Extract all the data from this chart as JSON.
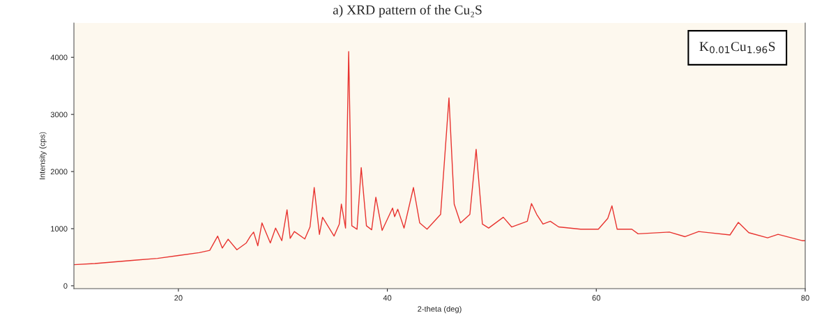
{
  "chart_data": {
    "type": "line",
    "title": "a) XRD pattern of the Cu₂S",
    "xlabel": "2-theta (deg)",
    "ylabel": "Intensity (cps)",
    "annotations": [
      "K$_{0.01}$Cu$_{1.96}$S"
    ],
    "x": [
      10,
      12,
      14,
      16,
      18,
      20,
      22,
      23,
      23.76,
      24.2,
      24.76,
      25.6,
      26.5,
      26.9,
      27.2,
      27.6,
      28.0,
      28.8,
      29.3,
      29.9,
      30.4,
      30.7,
      31.1,
      32.1,
      32.6,
      33.0,
      33.5,
      33.8,
      34.9,
      35.4,
      35.6,
      36.0,
      36.3,
      36.6,
      37.1,
      37.5,
      38.0,
      38.5,
      38.9,
      39.5,
      40.5,
      40.7,
      41.0,
      41.6,
      42.5,
      43.1,
      43.8,
      45.1,
      45.9,
      46.4,
      47.0,
      47.9,
      48.5,
      49.1,
      49.7,
      51.1,
      51.9,
      53.4,
      53.8,
      54.3,
      54.9,
      55.6,
      56.4,
      58.5,
      60.2,
      61.1,
      61.5,
      62.0,
      63.4,
      64.0,
      67.0,
      68.5,
      69.8,
      72.8,
      73.6,
      74.6,
      76.4,
      77.4,
      79.7,
      80
    ],
    "series": [
      {
        "color": "#e8332f",
        "values": [
          370,
          390,
          420,
          450,
          480,
          530,
          580,
          620,
          870,
          660,
          816,
          630,
          750,
          870,
          940,
          700,
          1100,
          750,
          1010,
          790,
          1330,
          830,
          950,
          820,
          1030,
          1720,
          900,
          1200,
          870,
          1080,
          1430,
          1010,
          4100,
          1050,
          990,
          2070,
          1050,
          980,
          1550,
          970,
          1360,
          1210,
          1340,
          1010,
          1720,
          1100,
          990,
          1250,
          3290,
          1430,
          1100,
          1250,
          2390,
          1080,
          1010,
          1200,
          1030,
          1130,
          1440,
          1250,
          1080,
          1130,
          1030,
          990,
          990,
          1180,
          1400,
          990,
          990,
          910,
          940,
          860,
          950,
          890,
          1110,
          930,
          840,
          900,
          790,
          790
        ]
      }
    ],
    "xlim": [
      10,
      80
    ],
    "ylim": [
      -50,
      4600
    ],
    "xticks": [
      20,
      40,
      60,
      80
    ],
    "yticks": [
      0,
      1000,
      2000,
      3000,
      4000
    ]
  }
}
